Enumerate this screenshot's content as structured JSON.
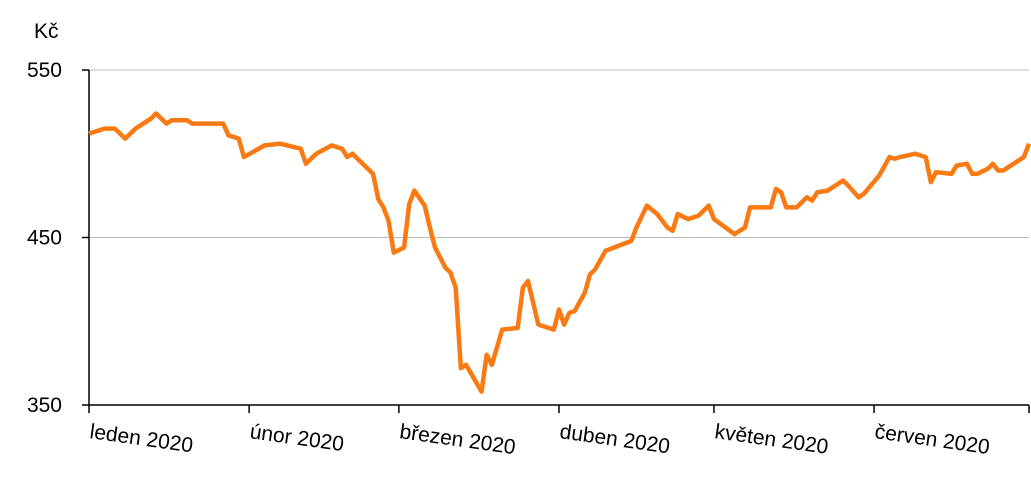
{
  "chart_data": {
    "type": "line",
    "ylabel": "Kč",
    "x": [
      0,
      2,
      3,
      5,
      7,
      9,
      12,
      13,
      15,
      16,
      19,
      20,
      26,
      27,
      29,
      30,
      34,
      37,
      41,
      42,
      44,
      47,
      49,
      50,
      51,
      55,
      56,
      57,
      58,
      59,
      61,
      62,
      63,
      65,
      66,
      67,
      69,
      70,
      71,
      72,
      73,
      76,
      77,
      78,
      80,
      83,
      84,
      85,
      87,
      90,
      91,
      92,
      93,
      94,
      96,
      97,
      98,
      100,
      105,
      106,
      108,
      110,
      112,
      113,
      114,
      116,
      118,
      120,
      121,
      125,
      127,
      128,
      132,
      133,
      134,
      135,
      137,
      139,
      140,
      141,
      143,
      146,
      147,
      149,
      150,
      153,
      155,
      156,
      157,
      160,
      162,
      163,
      164,
      167,
      168,
      170,
      171,
      172,
      174,
      175,
      176,
      177,
      179,
      181,
      182
    ],
    "series": [
      {
        "name": "Kč",
        "color": "#f97a12",
        "values": [
          512,
          514,
          515,
          515,
          509,
          515,
          521,
          524,
          518,
          520,
          520,
          518,
          518,
          511,
          509,
          498,
          505,
          506,
          503,
          494,
          500,
          505,
          503,
          498,
          500,
          488,
          473,
          468,
          460,
          441,
          444,
          470,
          478,
          469,
          456,
          444,
          432,
          429,
          420,
          372,
          374,
          358,
          380,
          374,
          395,
          396,
          420,
          424,
          398,
          395,
          407,
          398,
          405,
          406,
          417,
          428,
          431,
          442,
          448,
          456,
          469,
          464,
          456,
          454,
          464,
          461,
          463,
          469,
          461,
          452,
          456,
          468,
          468,
          479,
          477,
          468,
          468,
          474,
          472,
          477,
          478,
          484,
          481,
          474,
          476,
          487,
          498,
          497,
          498,
          500,
          498,
          483,
          489,
          488,
          493,
          494,
          488,
          488,
          491,
          494,
          490,
          490,
          494,
          498,
          506
        ]
      }
    ],
    "xlim": [
      0,
      182
    ],
    "xticks": [
      {
        "value": 0,
        "label": "leden 2020"
      },
      {
        "value": 31,
        "label": "únor 2020"
      },
      {
        "value": 60,
        "label": "březen 2020"
      },
      {
        "value": 91,
        "label": "duben 2020"
      },
      {
        "value": 121,
        "label": "květen 2020"
      },
      {
        "value": 152,
        "label": "červen 2020"
      }
    ],
    "ylim": [
      350,
      550
    ],
    "yticks": [
      350,
      450,
      550
    ],
    "grid": true
  }
}
